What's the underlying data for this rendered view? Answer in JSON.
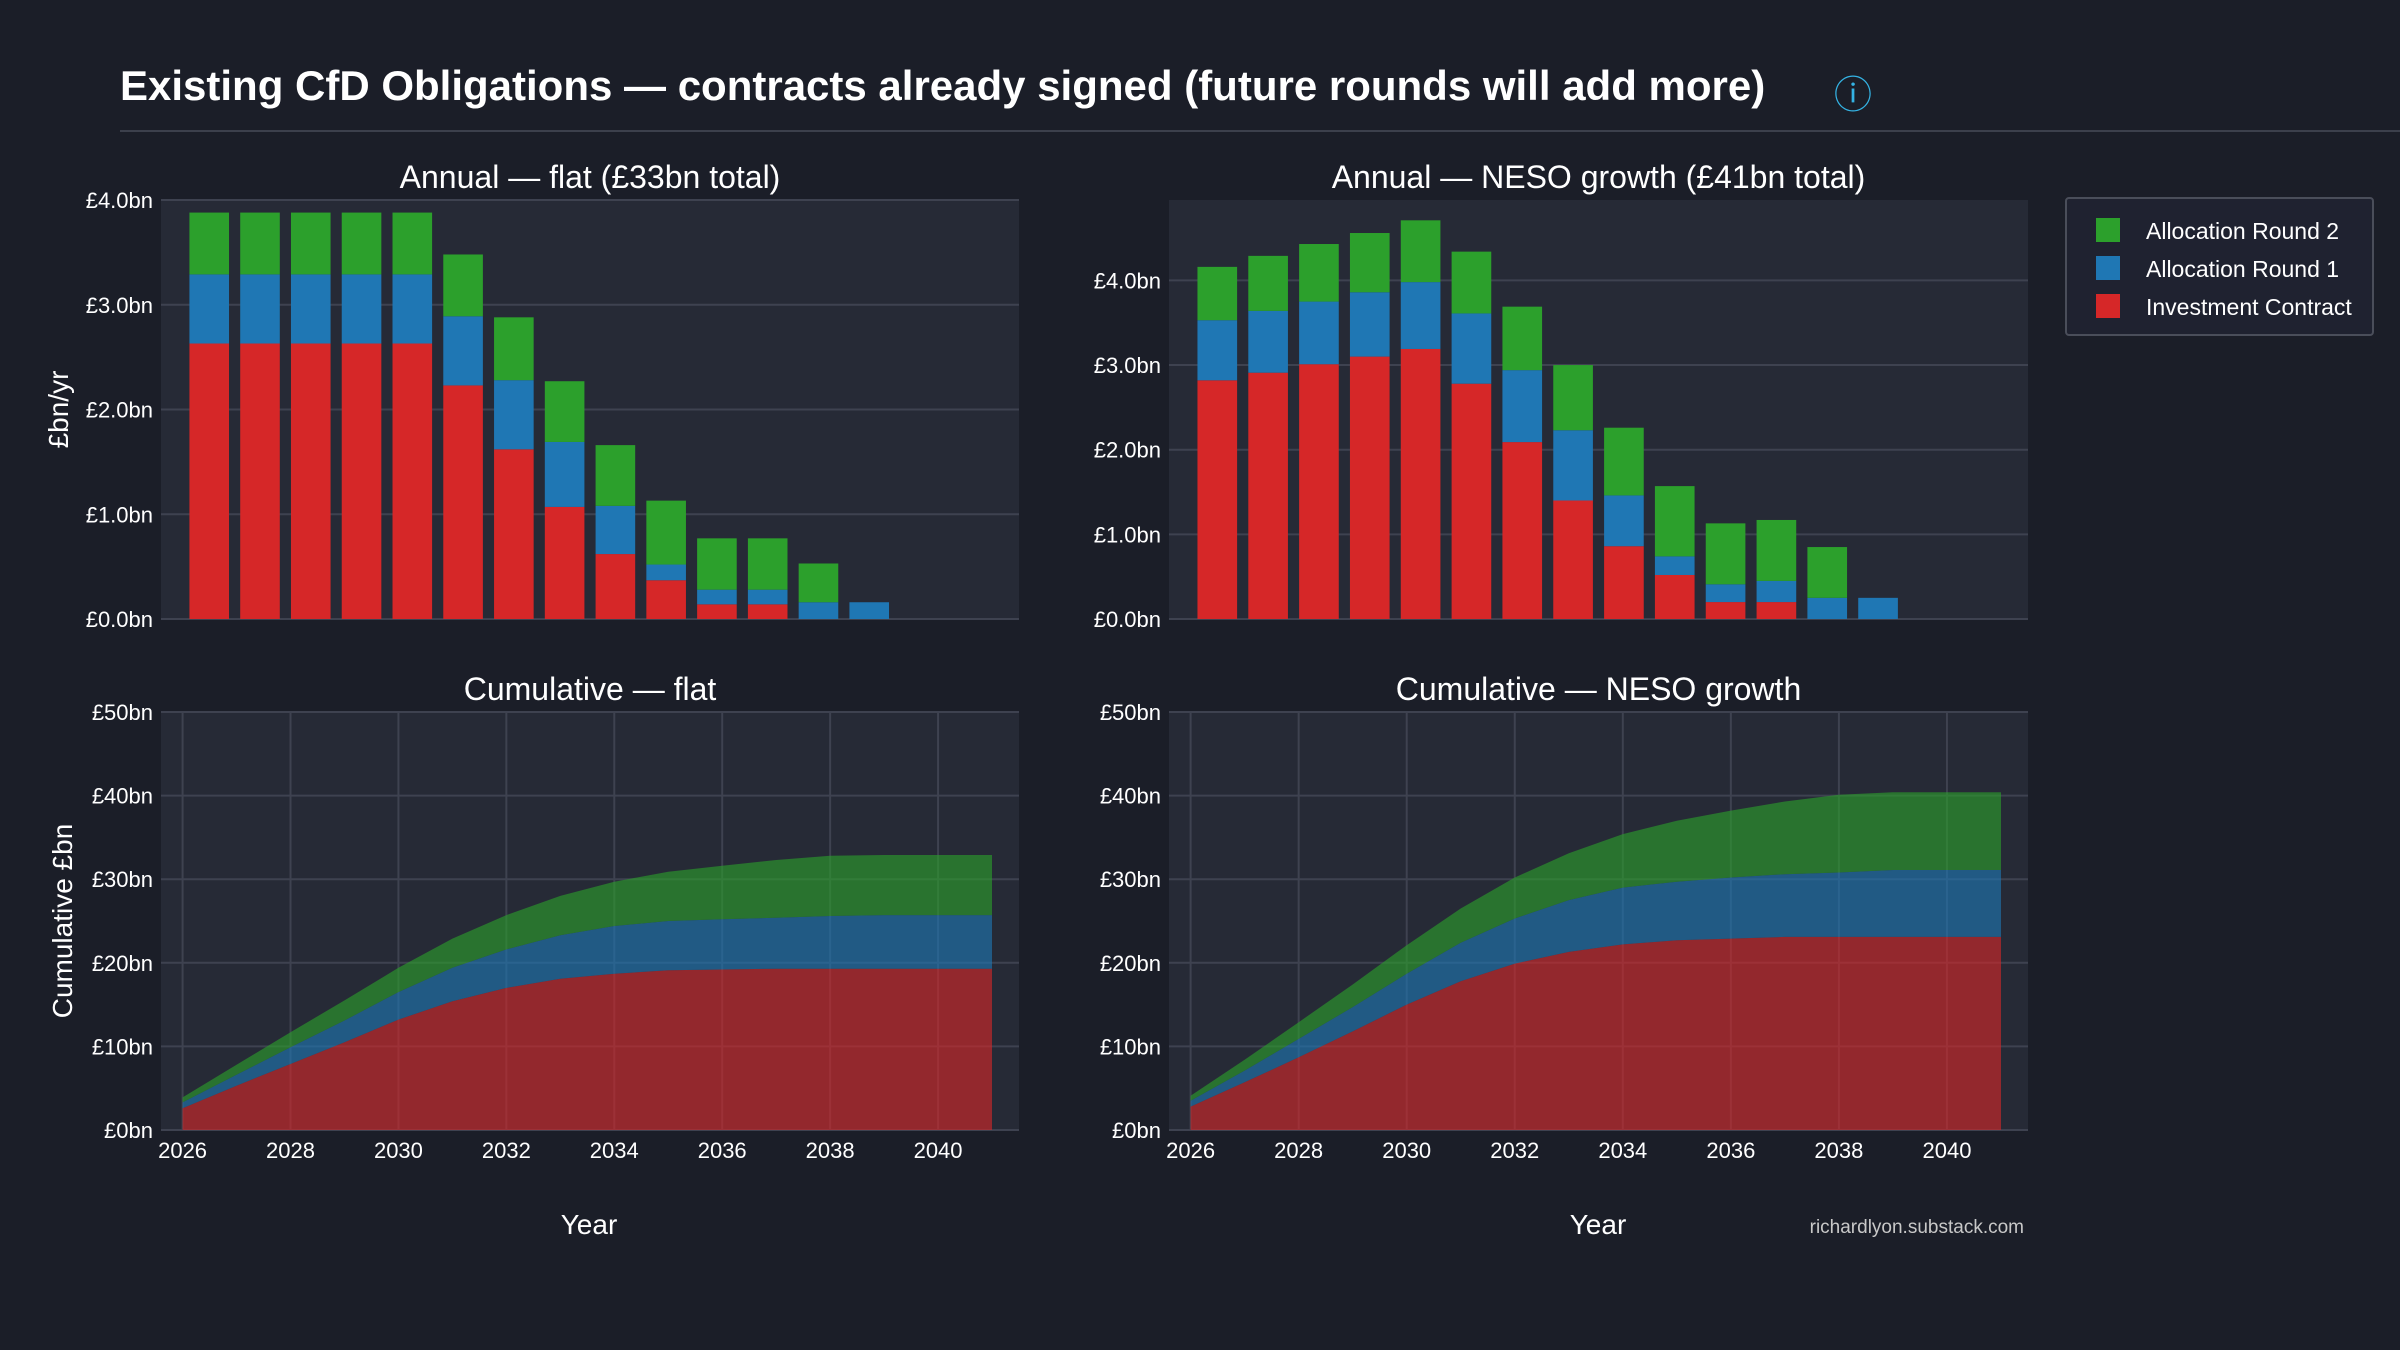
{
  "header": {
    "title": "Existing CfD Obligations — contracts already signed (future rounds will add more)",
    "info_icon": "ⓘ"
  },
  "credit": "richardlyon.substack.com",
  "colors": {
    "background": "#1b1e28",
    "plot_bg": "#262a36",
    "grid": "#3e4250",
    "Investment Contract": "#d62728",
    "Allocation Round 1": "#1f77b4",
    "Allocation Round 2": "#2ca02c"
  },
  "chart_data": [
    {
      "id": "annual-flat",
      "type": "bar",
      "stacked": true,
      "title": "Annual — flat (£33bn total)",
      "xlabel": "",
      "ylabel": "£bn/yr",
      "x": [
        2026,
        2027,
        2028,
        2029,
        2030,
        2031,
        2032,
        2033,
        2034,
        2035,
        2036,
        2037,
        2038,
        2039,
        2040,
        2041
      ],
      "ylim": [
        0,
        4.0
      ],
      "yticks": [
        0,
        1,
        2,
        3,
        4
      ],
      "ytick_labels": [
        "£0.0bn",
        "£1.0bn",
        "£2.0bn",
        "£3.0bn",
        "£4.0bn"
      ],
      "series": [
        {
          "name": "Investment Contract",
          "values": [
            2.63,
            2.63,
            2.63,
            2.63,
            2.63,
            2.23,
            1.62,
            1.07,
            0.62,
            0.37,
            0.14,
            0.14,
            0,
            0,
            0,
            0
          ]
        },
        {
          "name": "Allocation Round 1",
          "values": [
            0.66,
            0.66,
            0.66,
            0.66,
            0.66,
            0.66,
            0.66,
            0.62,
            0.46,
            0.15,
            0.14,
            0.14,
            0.16,
            0.16,
            0,
            0
          ]
        },
        {
          "name": "Allocation Round 2",
          "values": [
            0.59,
            0.59,
            0.59,
            0.59,
            0.59,
            0.59,
            0.6,
            0.58,
            0.58,
            0.61,
            0.49,
            0.49,
            0.37,
            0,
            0,
            0
          ]
        }
      ]
    },
    {
      "id": "annual-neso",
      "type": "bar",
      "stacked": true,
      "title": "Annual — NESO growth (£41bn total)",
      "xlabel": "",
      "ylabel": "",
      "x": [
        2026,
        2027,
        2028,
        2029,
        2030,
        2031,
        2032,
        2033,
        2034,
        2035,
        2036,
        2037,
        2038,
        2039,
        2040,
        2041
      ],
      "ylim": [
        0,
        4.95
      ],
      "yticks": [
        0,
        1,
        2,
        3,
        4
      ],
      "ytick_labels": [
        "£0.0bn",
        "£1.0bn",
        "£2.0bn",
        "£3.0bn",
        "£4.0bn"
      ],
      "series": [
        {
          "name": "Investment Contract",
          "values": [
            2.82,
            2.91,
            3.01,
            3.1,
            3.19,
            2.78,
            2.09,
            1.4,
            0.86,
            0.52,
            0.2,
            0.2,
            0,
            0,
            0,
            0
          ]
        },
        {
          "name": "Allocation Round 1",
          "values": [
            0.71,
            0.73,
            0.74,
            0.76,
            0.79,
            0.83,
            0.85,
            0.83,
            0.6,
            0.22,
            0.21,
            0.25,
            0.25,
            0.25,
            0,
            0
          ]
        },
        {
          "name": "Allocation Round 2",
          "values": [
            0.63,
            0.65,
            0.68,
            0.7,
            0.73,
            0.73,
            0.75,
            0.77,
            0.8,
            0.83,
            0.72,
            0.72,
            0.6,
            0,
            0,
            0
          ]
        }
      ]
    },
    {
      "id": "cumulative-flat",
      "type": "area",
      "stacked": true,
      "title": "Cumulative — flat",
      "xlabel": "Year",
      "ylabel": "Cumulative £bn",
      "x": [
        2026,
        2027,
        2028,
        2029,
        2030,
        2031,
        2032,
        2033,
        2034,
        2035,
        2036,
        2037,
        2038,
        2039,
        2040,
        2041
      ],
      "xlim": [
        2025.6,
        2041.5
      ],
      "xticks": [
        2026,
        2028,
        2030,
        2032,
        2034,
        2036,
        2038,
        2040
      ],
      "ylim": [
        0,
        50
      ],
      "yticks": [
        0,
        10,
        20,
        30,
        40,
        50
      ],
      "ytick_labels": [
        "£0bn",
        "£10bn",
        "£20bn",
        "£30bn",
        "£40bn",
        "£50bn"
      ],
      "series": [
        {
          "name": "Investment Contract",
          "values": [
            2.6,
            5.3,
            7.9,
            10.5,
            13.2,
            15.4,
            17.0,
            18.1,
            18.7,
            19.1,
            19.2,
            19.3,
            19.3,
            19.3,
            19.3,
            19.3
          ]
        },
        {
          "name": "Allocation Round 1",
          "values": [
            0.7,
            1.3,
            2.0,
            2.6,
            3.3,
            4.0,
            4.6,
            5.2,
            5.7,
            5.9,
            6.0,
            6.1,
            6.3,
            6.4,
            6.4,
            6.4
          ]
        },
        {
          "name": "Allocation Round 2",
          "values": [
            0.6,
            1.2,
            1.8,
            2.4,
            2.9,
            3.5,
            4.1,
            4.7,
            5.3,
            5.9,
            6.4,
            6.9,
            7.2,
            7.2,
            7.2,
            7.2
          ]
        }
      ]
    },
    {
      "id": "cumulative-neso",
      "type": "area",
      "stacked": true,
      "title": "Cumulative — NESO growth",
      "xlabel": "Year",
      "ylabel": "",
      "x": [
        2026,
        2027,
        2028,
        2029,
        2030,
        2031,
        2032,
        2033,
        2034,
        2035,
        2036,
        2037,
        2038,
        2039,
        2040,
        2041
      ],
      "xlim": [
        2025.6,
        2041.5
      ],
      "xticks": [
        2026,
        2028,
        2030,
        2032,
        2034,
        2036,
        2038,
        2040
      ],
      "ylim": [
        0,
        50
      ],
      "yticks": [
        0,
        10,
        20,
        30,
        40,
        50
      ],
      "ytick_labels": [
        "£0bn",
        "£10bn",
        "£20bn",
        "£30bn",
        "£40bn",
        "£50bn"
      ],
      "series": [
        {
          "name": "Investment Contract",
          "values": [
            2.8,
            5.7,
            8.7,
            11.8,
            15.0,
            17.8,
            19.9,
            21.3,
            22.2,
            22.7,
            22.9,
            23.1,
            23.1,
            23.1,
            23.1,
            23.1
          ]
        },
        {
          "name": "Allocation Round 1",
          "values": [
            0.7,
            1.4,
            2.2,
            2.9,
            3.7,
            4.6,
            5.4,
            6.2,
            6.8,
            7.0,
            7.3,
            7.5,
            7.7,
            8.0,
            8.0,
            8.0
          ]
        },
        {
          "name": "Allocation Round 2",
          "values": [
            0.6,
            1.3,
            2.0,
            2.7,
            3.4,
            4.1,
            4.9,
            5.6,
            6.4,
            7.3,
            8.0,
            8.7,
            9.3,
            9.3,
            9.3,
            9.3
          ]
        }
      ]
    }
  ],
  "legend": {
    "position": "top-right",
    "entries": [
      "Allocation Round 2",
      "Allocation Round 1",
      "Investment Contract"
    ]
  }
}
